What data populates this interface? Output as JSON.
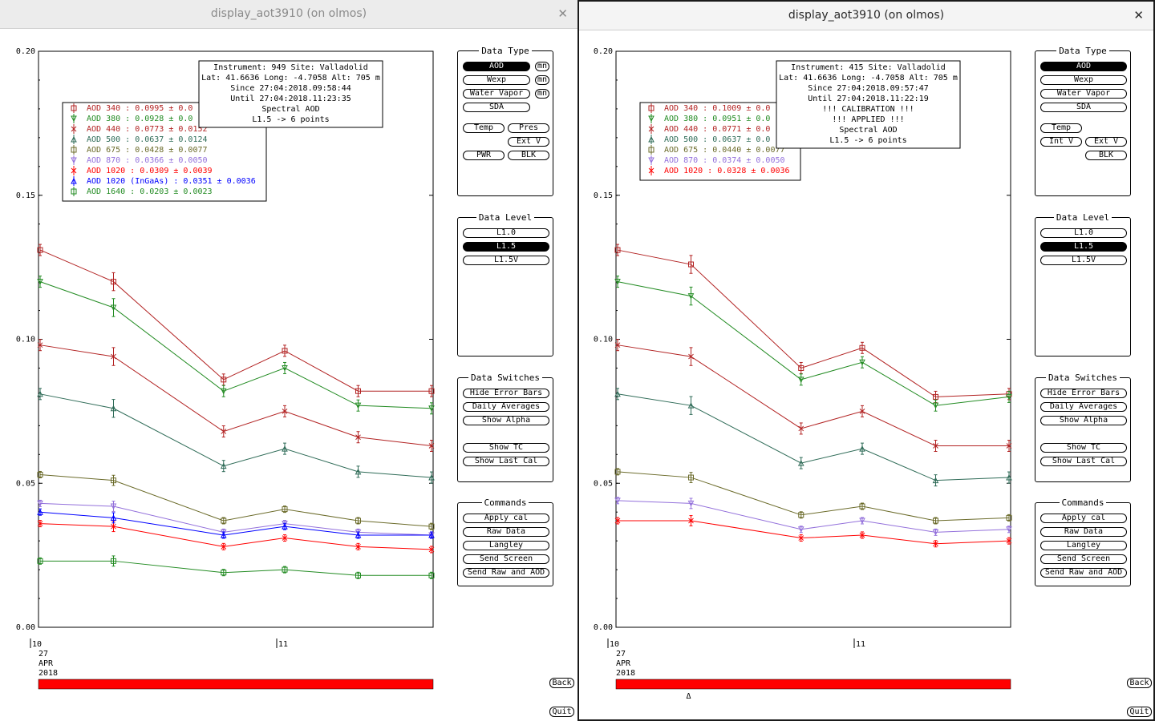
{
  "colors": {
    "aod340": "#b22222",
    "aod380": "#228b22",
    "aod440": "#b22222",
    "aod500": "#2e6b57",
    "aod675": "#6b6b2a",
    "aod870": "#9370db",
    "aod1020": "#ff0000",
    "aod1020ingaas": "#0000ff",
    "aod1640": "#228b22",
    "timebar": "#ff0000"
  },
  "windows": [
    {
      "title": "display_aot3910 (on olmos)",
      "chart_data": {
        "type": "line",
        "y_ticks": [
          "0.20",
          "0.15",
          "0.10",
          "0.05",
          "0.00"
        ],
        "ylim": [
          0,
          0.2
        ],
        "x_hours": [
          10.0,
          10.3,
          10.75,
          11.0,
          11.3,
          11.6
        ],
        "x_ticks": [
          {
            "label": "10",
            "x": 10.0
          },
          {
            "label": "11",
            "x": 11.0
          }
        ],
        "date_lines": [
          "27",
          "APR",
          "2018"
        ],
        "info_box": [
          "Instrument: 949 Site: Valladolid",
          "Lat: 41.6636 Long: -4.7058 Alt: 705 m",
          "Since 27:04:2018.09:58:44",
          "Until 27:04:2018.11:23:35",
          "Spectral AOD",
          "L1.5 -> 6 points"
        ],
        "series": [
          {
            "name": "AOD 340",
            "stats": ": 0.0995 ± 0.0",
            "color": "#b22222",
            "marker": "square",
            "values": [
              0.131,
              0.12,
              0.086,
              0.096,
              0.082,
              0.082
            ]
          },
          {
            "name": "AOD 380",
            "stats": ": 0.0928 ± 0.0",
            "color": "#228b22",
            "marker": "tri-down",
            "values": [
              0.12,
              0.111,
              0.082,
              0.09,
              0.077,
              0.076
            ]
          },
          {
            "name": "AOD 440",
            "stats": ": 0.0773 ± 0.0152",
            "color": "#b22222",
            "marker": "x",
            "values": [
              0.098,
              0.094,
              0.068,
              0.075,
              0.066,
              0.063
            ]
          },
          {
            "name": "AOD 500",
            "stats": ": 0.0637 ± 0.0124",
            "color": "#2e6b57",
            "marker": "tri-up",
            "values": [
              0.081,
              0.076,
              0.056,
              0.062,
              0.054,
              0.052
            ]
          },
          {
            "name": "AOD 675",
            "stats": ": 0.0428 ± 0.0077",
            "color": "#6b6b2a",
            "marker": "square",
            "values": [
              0.053,
              0.051,
              0.037,
              0.041,
              0.037,
              0.035
            ]
          },
          {
            "name": "AOD 870",
            "stats": ": 0.0366 ± 0.0050",
            "color": "#9370db",
            "marker": "tri-down",
            "values": [
              0.043,
              0.042,
              0.033,
              0.036,
              0.033,
              0.032
            ]
          },
          {
            "name": "AOD 1020",
            "stats": " : 0.0309 ± 0.0039",
            "color": "#ff0000",
            "marker": "x",
            "values": [
              0.036,
              0.035,
              0.028,
              0.031,
              0.028,
              0.027
            ]
          },
          {
            "name": "AOD 1020 (InGaAs)",
            "stats": " : 0.0351 ± 0.0036",
            "color": "#0000ff",
            "marker": "tri-up",
            "values": [
              0.04,
              0.038,
              0.032,
              0.035,
              0.032,
              0.032
            ]
          },
          {
            "name": "AOD 1640",
            "stats": ": 0.0203 ± 0.0023",
            "color": "#228b22",
            "marker": "square",
            "values": [
              0.023,
              0.023,
              0.019,
              0.02,
              0.018,
              0.018
            ]
          }
        ]
      },
      "data_type": {
        "title": "Data Type",
        "aod": "AOD",
        "wexp": "Wexp",
        "water_vapor": "Water Vapor",
        "sda": "SDA",
        "mn": "mn",
        "temp": "Temp",
        "pres": "Pres",
        "int_v": "",
        "ext_v": "Ext V",
        "pwr": "PWR",
        "blk": "BLK"
      },
      "data_level": {
        "title": "Data Level",
        "items": [
          "L1.0",
          "L1.5",
          "L1.5V"
        ],
        "selected": "L1.5"
      },
      "data_switches": {
        "title": "Data Switches",
        "items": [
          "Hide Error Bars",
          "Daily Averages",
          "Show Alpha",
          "Show TC",
          "Show Last Cal"
        ]
      },
      "commands": {
        "title": "Commands",
        "items": [
          "Apply cal",
          "Raw Data",
          "Langley",
          "Send Screen",
          "Send Raw and AOD"
        ]
      },
      "back": "Back",
      "quit": "Quit"
    },
    {
      "title": "display_aot3910 (on olmos)",
      "chart_data": {
        "type": "line",
        "y_ticks": [
          "0.20",
          "0.15",
          "0.10",
          "0.05",
          "0.00"
        ],
        "ylim": [
          0,
          0.2
        ],
        "x_hours": [
          10.0,
          10.3,
          10.75,
          11.0,
          11.3,
          11.6
        ],
        "x_ticks": [
          {
            "label": "10",
            "x": 10.0
          },
          {
            "label": "11",
            "x": 11.0
          }
        ],
        "date_lines": [
          "27",
          "APR",
          "2018"
        ],
        "info_box": [
          "Instrument: 415 Site: Valladolid",
          "Lat: 41.6636 Long: -4.7058 Alt: 705 m",
          "Since 27:04:2018.09:57:47",
          "Until 27:04:2018.11:22:19",
          "!!! CALIBRATION !!!",
          "!!!   APPLIED   !!!",
          "Spectral AOD",
          "L1.5 -> 6 points"
        ],
        "series": [
          {
            "name": "AOD 340",
            "stats": ": 0.1009 ± 0.0",
            "color": "#b22222",
            "marker": "square",
            "values": [
              0.131,
              0.126,
              0.09,
              0.097,
              0.08,
              0.081
            ]
          },
          {
            "name": "AOD 380",
            "stats": ": 0.0951 ± 0.0",
            "color": "#228b22",
            "marker": "tri-down",
            "values": [
              0.12,
              0.115,
              0.086,
              0.092,
              0.077,
              0.08
            ]
          },
          {
            "name": "AOD 440",
            "stats": ": 0.0771 ± 0.0",
            "color": "#b22222",
            "marker": "x",
            "values": [
              0.098,
              0.094,
              0.069,
              0.075,
              0.063,
              0.063
            ]
          },
          {
            "name": "AOD 500",
            "stats": ": 0.0637 ± 0.0",
            "color": "#2e6b57",
            "marker": "tri-up",
            "values": [
              0.081,
              0.077,
              0.057,
              0.062,
              0.051,
              0.052
            ]
          },
          {
            "name": "AOD 675",
            "stats": ": 0.0440 ± 0.0077",
            "color": "#6b6b2a",
            "marker": "square",
            "values": [
              0.054,
              0.052,
              0.039,
              0.042,
              0.037,
              0.038
            ]
          },
          {
            "name": "AOD 870",
            "stats": ": 0.0374 ± 0.0050",
            "color": "#9370db",
            "marker": "tri-down",
            "values": [
              0.044,
              0.043,
              0.034,
              0.037,
              0.033,
              0.034
            ]
          },
          {
            "name": "AOD 1020",
            "stats": " : 0.0328 ± 0.0036",
            "color": "#ff0000",
            "marker": "x",
            "values": [
              0.037,
              0.037,
              0.031,
              0.032,
              0.029,
              0.03
            ]
          }
        ],
        "marker_triangle": "Δ"
      },
      "data_type": {
        "title": "Data Type",
        "aod": "AOD",
        "wexp": "Wexp",
        "water_vapor": "Water Vapor",
        "sda": "SDA",
        "mn": "",
        "temp": "Temp",
        "pres": "",
        "int_v": "Int V",
        "ext_v": "Ext V",
        "pwr": "",
        "blk": "BLK"
      },
      "data_level": {
        "title": "Data Level",
        "items": [
          "L1.0",
          "L1.5",
          "L1.5V"
        ],
        "selected": "L1.5"
      },
      "data_switches": {
        "title": "Data Switches",
        "items": [
          "Hide Error Bars",
          "Daily Averages",
          "Show Alpha",
          "Show TC",
          "Show Last Cal"
        ]
      },
      "commands": {
        "title": "Commands",
        "items": [
          "Apply cal",
          "Raw Data",
          "Langley",
          "Send Screen",
          "Send Raw and AOD"
        ]
      },
      "back": "Back",
      "quit": "Quit"
    }
  ]
}
